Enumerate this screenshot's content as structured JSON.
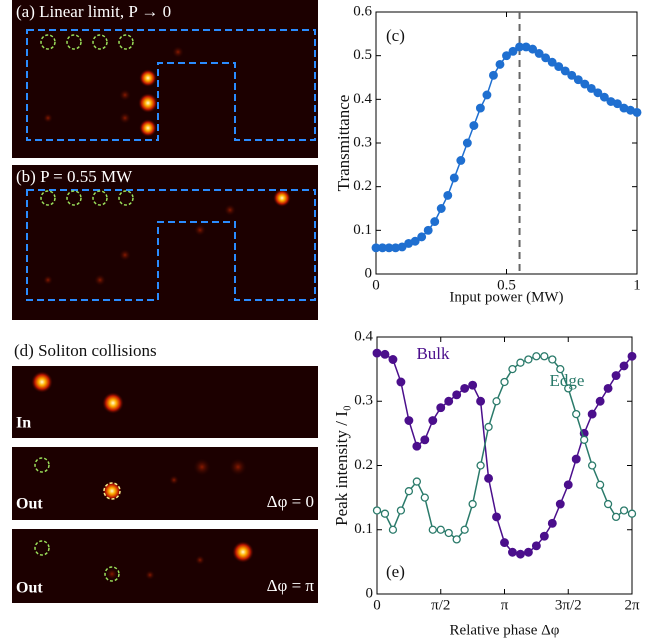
{
  "panels": [
    {
      "label": "(a) Linear limit, P → 0"
    },
    {
      "label": "(b) P = 0.55 MW"
    },
    {
      "label": "(d) Soliton collisions",
      "frames": [
        {
          "tag": "In"
        },
        {
          "tag": "Out",
          "phase": "Δφ = 0"
        },
        {
          "tag": "Out",
          "phase": "Δφ = π"
        }
      ]
    }
  ],
  "chart_data": [
    {
      "type": "line",
      "panel_label": "(c)",
      "xlabel": "Input power (MW)",
      "ylabel": "Transmittance",
      "xlim": [
        0,
        1
      ],
      "xticks": [
        0,
        0.5,
        1
      ],
      "ylim": [
        0,
        0.6
      ],
      "yticks": [
        0,
        0.1,
        0.2,
        0.3,
        0.4,
        0.5,
        0.6
      ],
      "vline": 0.55,
      "color": "#1f6fd0",
      "marker": "filled",
      "x": [
        0,
        0.025,
        0.05,
        0.075,
        0.1,
        0.125,
        0.15,
        0.175,
        0.2,
        0.225,
        0.25,
        0.275,
        0.3,
        0.325,
        0.35,
        0.375,
        0.4,
        0.425,
        0.45,
        0.475,
        0.5,
        0.525,
        0.55,
        0.575,
        0.6,
        0.625,
        0.65,
        0.675,
        0.7,
        0.725,
        0.75,
        0.775,
        0.8,
        0.825,
        0.85,
        0.875,
        0.9,
        0.925,
        0.95,
        0.975,
        1
      ],
      "values": [
        0.06,
        0.06,
        0.06,
        0.06,
        0.062,
        0.07,
        0.075,
        0.085,
        0.1,
        0.12,
        0.15,
        0.18,
        0.22,
        0.26,
        0.3,
        0.34,
        0.38,
        0.41,
        0.455,
        0.48,
        0.5,
        0.51,
        0.52,
        0.52,
        0.515,
        0.505,
        0.495,
        0.485,
        0.475,
        0.465,
        0.455,
        0.445,
        0.435,
        0.425,
        0.415,
        0.405,
        0.395,
        0.39,
        0.38,
        0.375,
        0.37
      ]
    },
    {
      "type": "line",
      "panel_label": "(e)",
      "xlabel": "Relative phase Δφ",
      "ylabel": "Peak intensity / I₀",
      "xlim": [
        0,
        6.2832
      ],
      "xticks": [
        0,
        {
          "value": 1.5708,
          "label": "π/2"
        },
        {
          "value": 3.1416,
          "label": "π"
        },
        {
          "value": 4.7124,
          "label": "3π/2"
        },
        {
          "value": 6.2832,
          "label": "2π"
        }
      ],
      "ylim": [
        0,
        0.4
      ],
      "yticks": [
        0,
        0.1,
        0.2,
        0.3,
        0.4
      ],
      "x": [
        0,
        0.1963,
        0.3927,
        0.589,
        0.7854,
        0.9817,
        1.1781,
        1.3744,
        1.5708,
        1.7671,
        1.9635,
        2.1598,
        2.3562,
        2.5525,
        2.7489,
        2.9452,
        3.1416,
        3.3379,
        3.5343,
        3.7306,
        3.927,
        4.1233,
        4.3197,
        4.516,
        4.7124,
        4.9087,
        5.1051,
        5.3014,
        5.4978,
        5.6941,
        5.8905,
        6.0868,
        6.2832
      ],
      "series": [
        {
          "name": "Bulk",
          "color": "#4b0f8c",
          "marker": "filled",
          "values": [
            0.375,
            0.373,
            0.365,
            0.33,
            0.27,
            0.23,
            0.24,
            0.27,
            0.29,
            0.3,
            0.31,
            0.32,
            0.325,
            0.3,
            0.18,
            0.12,
            0.08,
            0.065,
            0.062,
            0.065,
            0.075,
            0.09,
            0.11,
            0.14,
            0.17,
            0.21,
            0.25,
            0.28,
            0.3,
            0.32,
            0.34,
            0.355,
            0.37
          ]
        },
        {
          "name": "Edge",
          "color": "#2a7a6a",
          "marker": "open",
          "values": [
            0.13,
            0.125,
            0.1,
            0.13,
            0.16,
            0.175,
            0.15,
            0.1,
            0.1,
            0.095,
            0.085,
            0.1,
            0.14,
            0.2,
            0.26,
            0.3,
            0.33,
            0.35,
            0.36,
            0.365,
            0.37,
            0.37,
            0.365,
            0.35,
            0.32,
            0.28,
            0.24,
            0.2,
            0.17,
            0.14,
            0.12,
            0.13,
            0.125
          ]
        }
      ]
    }
  ]
}
